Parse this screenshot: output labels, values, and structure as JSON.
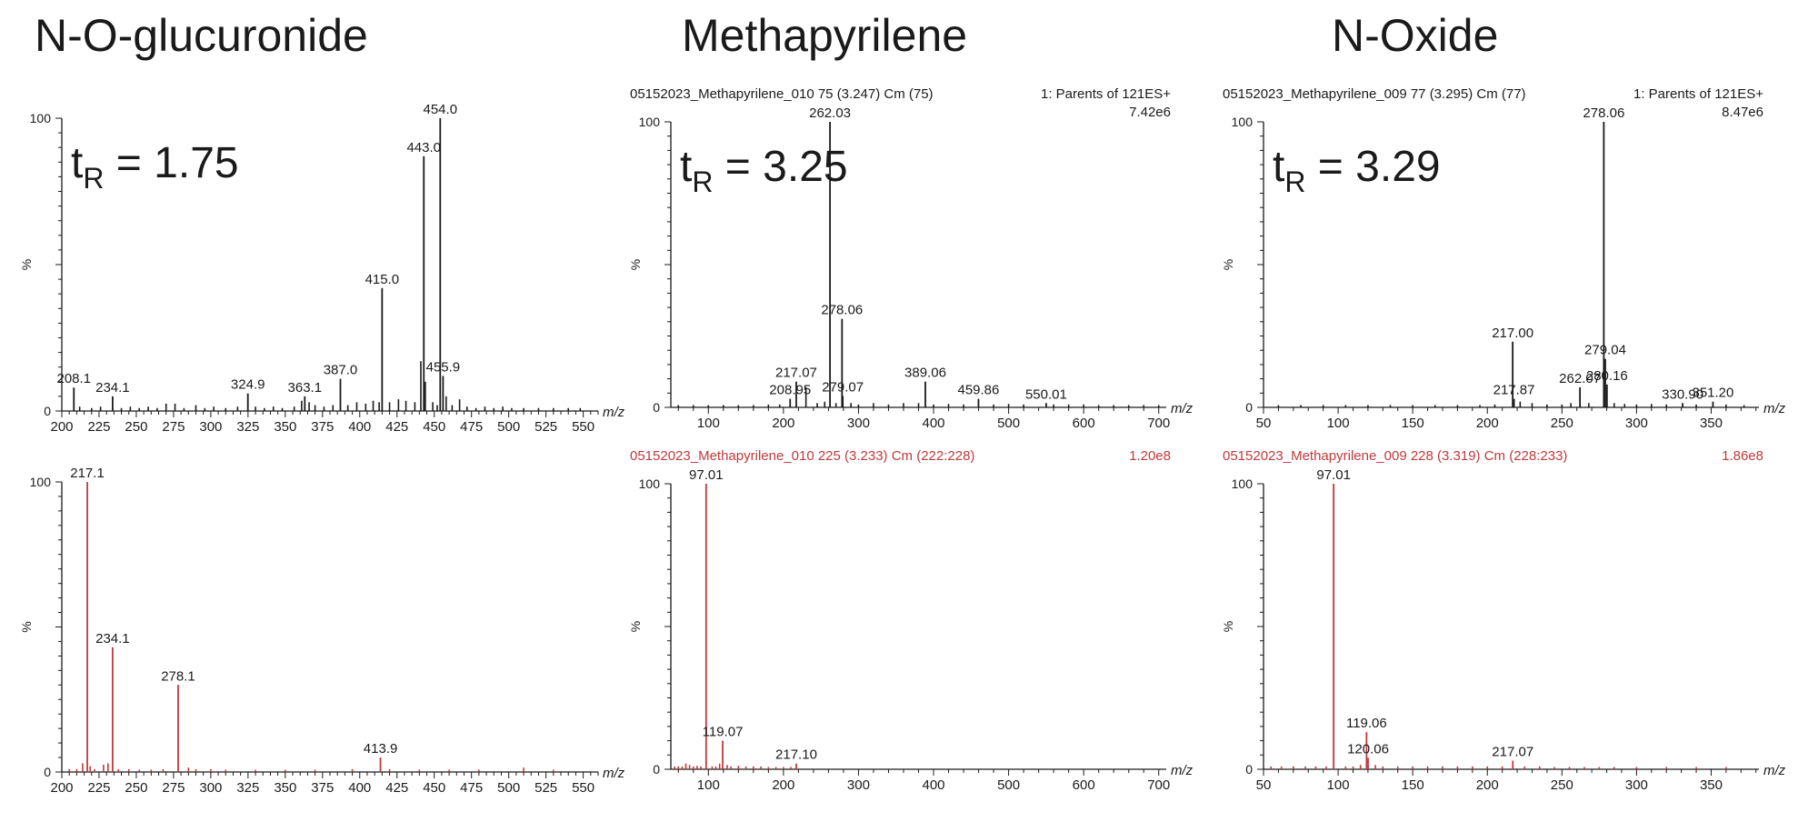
{
  "titles": [
    "N-O-glucuronide",
    "Methapyrilene",
    "N-Oxide"
  ],
  "colors": {
    "black": "#1a1a1a",
    "red": "#c0393b"
  },
  "chart_data": [
    {
      "type": "bar",
      "title": "N-O-glucuronide",
      "color": "black",
      "header_left": "",
      "header_right": "",
      "header_scale": "",
      "ylabel": "%",
      "xlabel": "m/z",
      "ylim": [
        0,
        100
      ],
      "xlim": [
        200,
        560
      ],
      "ticks": [
        200,
        225,
        250,
        275,
        300,
        325,
        350,
        375,
        400,
        425,
        450,
        475,
        500,
        525,
        550
      ],
      "tr_label": "t",
      "tr_sub": "R",
      "tr_value": " = 1.75",
      "labeled": [
        {
          "x": 208.1,
          "y": 8,
          "label": "208.1"
        },
        {
          "x": 234.1,
          "y": 5,
          "label": "234.1"
        },
        {
          "x": 324.9,
          "y": 6,
          "label": "324.9"
        },
        {
          "x": 363.1,
          "y": 5,
          "label": "363.1"
        },
        {
          "x": 387.0,
          "y": 11,
          "label": "387.0"
        },
        {
          "x": 415.0,
          "y": 42,
          "label": "415.0"
        },
        {
          "x": 443.0,
          "y": 87,
          "label": "443.0"
        },
        {
          "x": 454.0,
          "y": 100,
          "label": "454.0"
        },
        {
          "x": 455.9,
          "y": 12,
          "label": "455.9"
        }
      ],
      "minor": [
        [
          212,
          1.5
        ],
        [
          220,
          1
        ],
        [
          226,
          1.5
        ],
        [
          240,
          1
        ],
        [
          246,
          1.5
        ],
        [
          252,
          1
        ],
        [
          258,
          1.5
        ],
        [
          264,
          1
        ],
        [
          270,
          2.5
        ],
        [
          276,
          2.5
        ],
        [
          282,
          1
        ],
        [
          290,
          2
        ],
        [
          296,
          1
        ],
        [
          302,
          1.5
        ],
        [
          310,
          1
        ],
        [
          318,
          1.5
        ],
        [
          330,
          1.5
        ],
        [
          336,
          1
        ],
        [
          342,
          1.5
        ],
        [
          348,
          1
        ],
        [
          356,
          1.5
        ],
        [
          361,
          3.5
        ],
        [
          366,
          3
        ],
        [
          370,
          2
        ],
        [
          376,
          1.5
        ],
        [
          382,
          2
        ],
        [
          392,
          2
        ],
        [
          398,
          3
        ],
        [
          404,
          2.5
        ],
        [
          409,
          3.5
        ],
        [
          413,
          3
        ],
        [
          420,
          3
        ],
        [
          426,
          4
        ],
        [
          431,
          3.5
        ],
        [
          437,
          3
        ],
        [
          441,
          17
        ],
        [
          444,
          10
        ],
        [
          449,
          3
        ],
        [
          452,
          2
        ],
        [
          458,
          5
        ],
        [
          462,
          2
        ],
        [
          467,
          4
        ],
        [
          472,
          1.5
        ],
        [
          478,
          1
        ],
        [
          484,
          1.5
        ],
        [
          490,
          1
        ],
        [
          496,
          1.5
        ],
        [
          502,
          1
        ],
        [
          510,
          1
        ],
        [
          520,
          1
        ],
        [
          530,
          1
        ],
        [
          540,
          1
        ],
        [
          548,
          1
        ]
      ]
    },
    {
      "type": "bar",
      "title": "Methapyrilene",
      "color": "black",
      "header_left": "05152023_Methapyrilene_010 75 (3.247) Cm (75)",
      "header_right": "1: Parents of 121ES+",
      "header_scale": "7.42e6",
      "ylabel": "%",
      "xlabel": "m/z",
      "ylim": [
        0,
        100
      ],
      "xlim": [
        50,
        710
      ],
      "ticks": [
        100,
        200,
        300,
        400,
        500,
        600,
        700
      ],
      "tr_label": "t",
      "tr_sub": "R",
      "tr_value": " = 3.25",
      "labeled": [
        {
          "x": 208.95,
          "y": 3,
          "label": "208.95"
        },
        {
          "x": 217.07,
          "y": 9,
          "label": "217.07"
        },
        {
          "x": 262.03,
          "y": 100,
          "label": "262.03"
        },
        {
          "x": 278.06,
          "y": 31,
          "label": "278.06"
        },
        {
          "x": 279.07,
          "y": 4,
          "label": "279.07"
        },
        {
          "x": 389.06,
          "y": 9,
          "label": "389.06"
        },
        {
          "x": 459.86,
          "y": 3,
          "label": "459.86"
        },
        {
          "x": 550.01,
          "y": 1.5,
          "label": "550.01"
        }
      ],
      "minor": [
        [
          60,
          0.8
        ],
        [
          80,
          0.8
        ],
        [
          100,
          0.8
        ],
        [
          120,
          0.8
        ],
        [
          140,
          0.8
        ],
        [
          160,
          0.8
        ],
        [
          180,
          1
        ],
        [
          195,
          1
        ],
        [
          230,
          7
        ],
        [
          245,
          1.5
        ],
        [
          255,
          2
        ],
        [
          270,
          1.5
        ],
        [
          290,
          1.5
        ],
        [
          300,
          1
        ],
        [
          320,
          1.5
        ],
        [
          340,
          1
        ],
        [
          360,
          1.5
        ],
        [
          380,
          1.5
        ],
        [
          400,
          1
        ],
        [
          420,
          1.2
        ],
        [
          440,
          1
        ],
        [
          480,
          1
        ],
        [
          500,
          1.2
        ],
        [
          520,
          1
        ],
        [
          560,
          1
        ],
        [
          580,
          1
        ],
        [
          600,
          1
        ],
        [
          620,
          0.8
        ],
        [
          640,
          0.8
        ],
        [
          660,
          0.8
        ],
        [
          680,
          0.8
        ],
        [
          700,
          0.8
        ]
      ]
    },
    {
      "type": "bar",
      "title": "N-Oxide",
      "color": "black",
      "header_left": "05152023_Methapyrilene_009 77 (3.295) Cm (77)",
      "header_right": "1: Parents of 121ES+",
      "header_scale": "8.47e6",
      "ylabel": "%",
      "xlabel": "m/z",
      "ylim": [
        0,
        100
      ],
      "xlim": [
        50,
        382
      ],
      "ticks": [
        50,
        100,
        150,
        200,
        250,
        300,
        350
      ],
      "tr_label": "t",
      "tr_sub": "R",
      "tr_value": " = 3.29",
      "labeled": [
        {
          "x": 217.0,
          "y": 23,
          "label": "217.00"
        },
        {
          "x": 217.87,
          "y": 3,
          "label": "217.87"
        },
        {
          "x": 262.07,
          "y": 7,
          "label": "262.07"
        },
        {
          "x": 278.06,
          "y": 100,
          "label": "278.06"
        },
        {
          "x": 279.04,
          "y": 17,
          "label": "279.04"
        },
        {
          "x": 280.16,
          "y": 8,
          "label": "280.16"
        },
        {
          "x": 330.9,
          "y": 1.5,
          "label": "330.90"
        },
        {
          "x": 351.2,
          "y": 2,
          "label": "351.20"
        }
      ],
      "minor": [
        [
          60,
          0.8
        ],
        [
          75,
          0.8
        ],
        [
          90,
          0.8
        ],
        [
          105,
          0.8
        ],
        [
          120,
          0.8
        ],
        [
          135,
          0.8
        ],
        [
          150,
          0.8
        ],
        [
          165,
          0.8
        ],
        [
          180,
          0.8
        ],
        [
          195,
          0.8
        ],
        [
          205,
          1
        ],
        [
          222,
          2
        ],
        [
          230,
          1.5
        ],
        [
          240,
          1
        ],
        [
          250,
          1
        ],
        [
          256,
          1.5
        ],
        [
          268,
          1.5
        ],
        [
          285,
          1.5
        ],
        [
          292,
          1.2
        ],
        [
          300,
          1
        ],
        [
          310,
          1.2
        ],
        [
          320,
          1
        ],
        [
          340,
          1
        ],
        [
          360,
          1
        ],
        [
          372,
          0.8
        ]
      ]
    },
    {
      "type": "bar",
      "title": "",
      "color": "red",
      "header_left": "",
      "header_right": "",
      "header_scale": "",
      "ylabel": "%",
      "xlabel": "m/z",
      "ylim": [
        0,
        100
      ],
      "xlim": [
        200,
        560
      ],
      "ticks": [
        200,
        225,
        250,
        275,
        300,
        325,
        350,
        375,
        400,
        425,
        450,
        475,
        500,
        525,
        550
      ],
      "tr_label": "",
      "tr_sub": "",
      "tr_value": "",
      "labeled": [
        {
          "x": 217.1,
          "y": 100,
          "label": "217.1"
        },
        {
          "x": 234.1,
          "y": 43,
          "label": "234.1"
        },
        {
          "x": 278.1,
          "y": 30,
          "label": "278.1"
        },
        {
          "x": 413.9,
          "y": 5,
          "label": "413.9"
        }
      ],
      "minor": [
        [
          205,
          1
        ],
        [
          210,
          1
        ],
        [
          214,
          3
        ],
        [
          219,
          2
        ],
        [
          222,
          1
        ],
        [
          228,
          2.5
        ],
        [
          231,
          3
        ],
        [
          238,
          1
        ],
        [
          245,
          1
        ],
        [
          252,
          0.8
        ],
        [
          260,
          0.8
        ],
        [
          268,
          1
        ],
        [
          285,
          1.5
        ],
        [
          290,
          1
        ],
        [
          300,
          1
        ],
        [
          310,
          0.8
        ],
        [
          330,
          0.8
        ],
        [
          350,
          0.8
        ],
        [
          370,
          0.8
        ],
        [
          395,
          1
        ],
        [
          420,
          1
        ],
        [
          440,
          0.8
        ],
        [
          460,
          0.8
        ],
        [
          480,
          0.8
        ],
        [
          510,
          1.5
        ],
        [
          530,
          0.8
        ]
      ]
    },
    {
      "type": "bar",
      "title": "",
      "color": "red",
      "header_left": "05152023_Methapyrilene_010 225 (3.233) Cm (222:228)",
      "header_right": "",
      "header_scale": "1.20e8",
      "ylabel": "%",
      "xlabel": "m/z",
      "ylim": [
        0,
        100
      ],
      "xlim": [
        50,
        710
      ],
      "ticks": [
        100,
        200,
        300,
        400,
        500,
        600,
        700
      ],
      "tr_label": "",
      "tr_sub": "",
      "tr_value": "",
      "labeled": [
        {
          "x": 97.01,
          "y": 100,
          "label": "97.01"
        },
        {
          "x": 119.07,
          "y": 10,
          "label": "119.07"
        },
        {
          "x": 217.1,
          "y": 2,
          "label": "217.10"
        }
      ],
      "minor": [
        [
          55,
          1
        ],
        [
          60,
          1
        ],
        [
          65,
          1
        ],
        [
          70,
          2
        ],
        [
          75,
          1.5
        ],
        [
          80,
          1
        ],
        [
          85,
          1.2
        ],
        [
          90,
          1
        ],
        [
          105,
          1
        ],
        [
          110,
          1
        ],
        [
          115,
          2
        ],
        [
          125,
          1.5
        ],
        [
          130,
          1
        ],
        [
          140,
          1.2
        ],
        [
          150,
          1
        ],
        [
          160,
          1
        ],
        [
          170,
          1
        ],
        [
          180,
          0.8
        ],
        [
          190,
          0.8
        ],
        [
          200,
          0.8
        ],
        [
          210,
          0.8
        ]
      ]
    },
    {
      "type": "bar",
      "title": "",
      "color": "red",
      "header_left": "05152023_Methapyrilene_009 228 (3.319) Cm (228:233)",
      "header_right": "",
      "header_scale": "1.86e8",
      "ylabel": "%",
      "xlabel": "m/z",
      "ylim": [
        0,
        100
      ],
      "xlim": [
        50,
        382
      ],
      "ticks": [
        50,
        100,
        150,
        200,
        250,
        300,
        350
      ],
      "tr_label": "",
      "tr_sub": "",
      "tr_value": "",
      "labeled": [
        {
          "x": 97.01,
          "y": 100,
          "label": "97.01"
        },
        {
          "x": 119.06,
          "y": 13,
          "label": "119.06"
        },
        {
          "x": 120.06,
          "y": 4,
          "label": "120.06"
        },
        {
          "x": 217.07,
          "y": 3,
          "label": "217.07"
        }
      ],
      "minor": [
        [
          55,
          1
        ],
        [
          62,
          1
        ],
        [
          70,
          1
        ],
        [
          78,
          1
        ],
        [
          85,
          1
        ],
        [
          92,
          1
        ],
        [
          105,
          1
        ],
        [
          110,
          1
        ],
        [
          115,
          1.5
        ],
        [
          125,
          1.5
        ],
        [
          130,
          1
        ],
        [
          140,
          1
        ],
        [
          150,
          1
        ],
        [
          160,
          1
        ],
        [
          170,
          1
        ],
        [
          180,
          1
        ],
        [
          190,
          1
        ],
        [
          200,
          1
        ],
        [
          210,
          1
        ],
        [
          225,
          1
        ],
        [
          235,
          1
        ],
        [
          245,
          0.8
        ],
        [
          255,
          0.8
        ],
        [
          265,
          0.8
        ],
        [
          275,
          0.8
        ],
        [
          285,
          0.8
        ],
        [
          300,
          0.8
        ],
        [
          320,
          0.8
        ],
        [
          340,
          0.8
        ],
        [
          360,
          0.8
        ]
      ]
    }
  ]
}
